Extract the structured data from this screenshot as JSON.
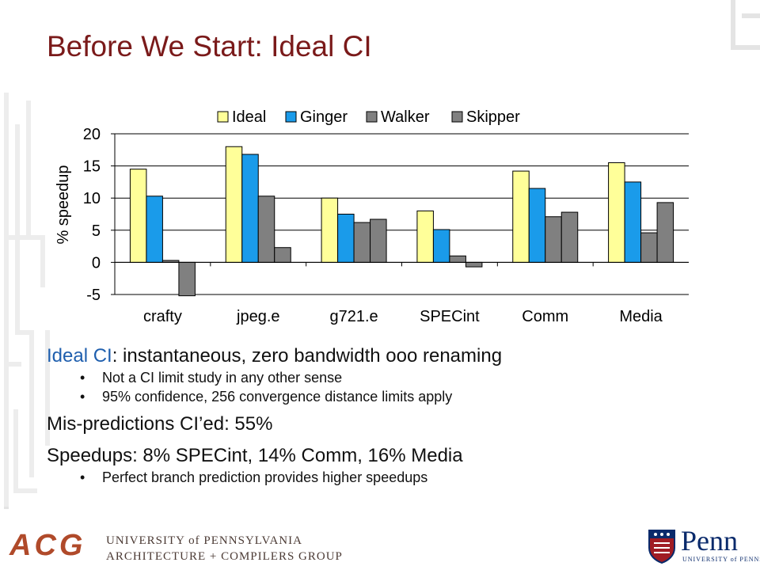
{
  "slide": {
    "title": "Before We Start: Ideal CI"
  },
  "chart_data": {
    "type": "bar",
    "ylabel": "% speedup",
    "ylim": [
      -5,
      20
    ],
    "yticks": [
      20,
      15,
      10,
      5,
      0,
      -5
    ],
    "legend_position": "top",
    "categories": [
      "crafty",
      "jpeg.e",
      "g721.e",
      "SPECint",
      "Comm",
      "Media"
    ],
    "series": [
      {
        "name": "Ideal",
        "color": "#ffff99",
        "values": [
          14.5,
          18.0,
          10.0,
          8.0,
          14.2,
          15.5
        ]
      },
      {
        "name": "Ginger",
        "color": "#1a9bea",
        "values": [
          10.3,
          16.8,
          7.5,
          5.1,
          11.5,
          12.5
        ]
      },
      {
        "name": "Walker",
        "color": "#808080",
        "values": [
          0.3,
          10.3,
          6.2,
          1.0,
          7.1,
          4.6
        ]
      },
      {
        "name": "Skipper",
        "color": "#808080",
        "values": [
          -5.2,
          2.3,
          6.7,
          -0.7,
          7.8,
          9.3
        ]
      }
    ]
  },
  "bullets": {
    "line1_highlight": "Ideal CI",
    "line1_rest": ": instantaneous, zero bandwidth ooo renaming",
    "sub1": "Not a CI limit study in any other sense",
    "sub2": "95% confidence, 256 convergence distance limits apply",
    "line2": "Mis-predictions CI’ed: 55%",
    "line3": "Speedups: 8% SPECint, 14% Comm, 16% Media",
    "sub3": "Perfect branch prediction provides higher speedups"
  },
  "footer": {
    "acg_logo": "ACG",
    "university": "UNIVERSITY of PENNSYLVANIA",
    "group": "ARCHITECTURE + COMPILERS GROUP",
    "penn_logo": "Penn",
    "penn_sub": "UNIVERSITY of PENNSYLVANIA"
  },
  "icons": {
    "acg": "acg-logo",
    "penn_shield": "penn-shield-icon"
  }
}
